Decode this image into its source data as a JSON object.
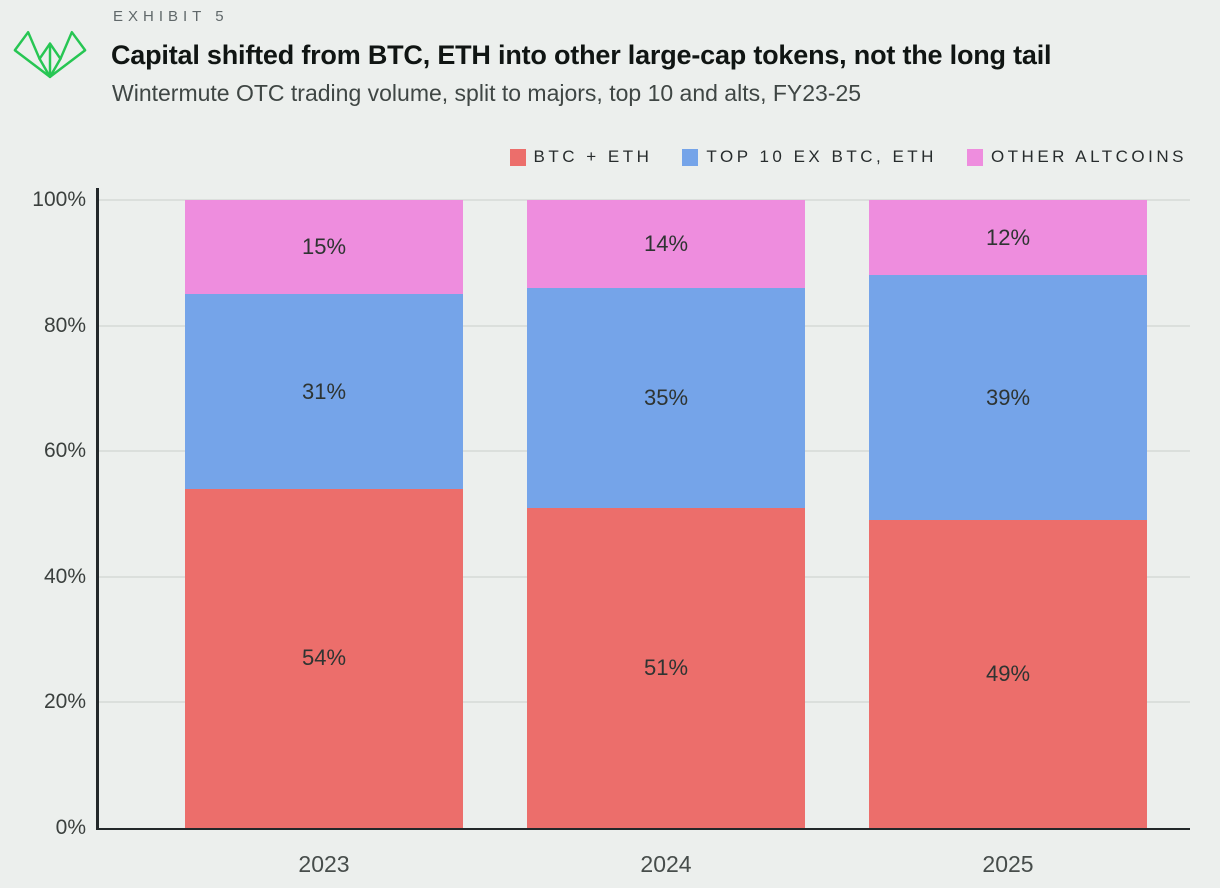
{
  "header": {
    "exhibit_label": "EXHIBIT 5",
    "title": "Capital shifted from BTC, ETH into other large-cap tokens, not the long tail",
    "subtitle": "Wintermute OTC trading volume, split to majors, top 10 and alts, FY23-25",
    "logo": "wintermute-logo",
    "logo_color": "#27c653"
  },
  "colors": {
    "background": "#ecefed",
    "axis": "#23282a",
    "gridline": "#dbdfdc",
    "bar_label_text": "#2e3432",
    "tick_text": "#3b403e"
  },
  "chart_data": {
    "type": "bar",
    "stacked": true,
    "title": "Capital shifted from BTC, ETH into other large-cap tokens, not the long tail",
    "subtitle": "Wintermute OTC trading volume, split to majors, top 10 and alts, FY23-25",
    "categories": [
      "2023",
      "2024",
      "2025"
    ],
    "series": [
      {
        "name": "BTC + ETH",
        "color": "#ec6e6b",
        "values": [
          54,
          51,
          49
        ]
      },
      {
        "name": "TOP 10 EX BTC, ETH",
        "color": "#75a4e9",
        "values": [
          31,
          35,
          39
        ]
      },
      {
        "name": "OTHER ALTCOINS",
        "color": "#ee8dde",
        "values": [
          15,
          14,
          12
        ]
      }
    ],
    "value_suffix": "%",
    "xlabel": "",
    "ylabel": "",
    "ylim": [
      0,
      100
    ],
    "yticks": [
      0,
      20,
      40,
      60,
      80,
      100
    ],
    "ytick_suffix": "%",
    "grid": true,
    "legend_position": "top-right"
  }
}
